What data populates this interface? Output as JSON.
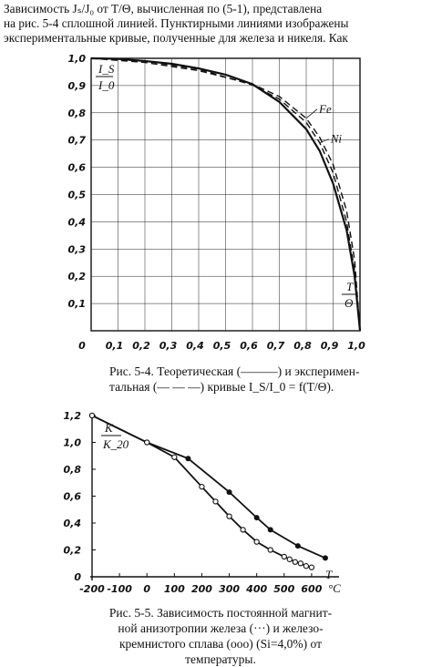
{
  "text": {
    "paragraph_lines": [
      "Зависимость Jₛ/J₀ от T/Θ, вычисленная по (5-1), представлена",
      "на рис. 5-4 сплошной линией. Пунктирными линиями изображены",
      "экспериментальные кривые, полученные для железа и никеля. Как"
    ],
    "figure1_caption_line1": "Рис. 5-4. Теоретическая (———) и эксперимен-",
    "figure1_caption_line2": "тальная (— — —) кривые I_S/I_0 = f(T/Θ).",
    "figure2_caption_line1": "Рис. 5-5. Зависимость постоянной магнит-",
    "figure2_caption_line2": "ной анизотропии железа (···) и железо-",
    "figure2_caption_line3": "кремнистого сплава (ooo) (Si=4,0%) от",
    "figure2_caption_line4": "температуры."
  },
  "chart_data": [
    {
      "type": "line",
      "xlabel_num": "T",
      "xlabel_den": "Θ",
      "ylabel_num": "I_S",
      "ylabel_den": "I_0",
      "xlim": [
        0,
        1.0
      ],
      "ylim": [
        0,
        1.0
      ],
      "x_ticks": [
        "0",
        "0,1",
        "0,2",
        "0,3",
        "0,4",
        "0,5",
        "0,6",
        "0,7",
        "0,8",
        "0,9",
        "1,0"
      ],
      "y_ticks": [
        "0,1",
        "0,2",
        "0,3",
        "0,4",
        "0,5",
        "0,6",
        "0,7",
        "0,8",
        "0,9",
        "1,0"
      ],
      "grid": true,
      "series": [
        {
          "style": "solid",
          "x": [
            0,
            0.1,
            0.2,
            0.3,
            0.4,
            0.5,
            0.6,
            0.7,
            0.8,
            0.85,
            0.9,
            0.95,
            0.98,
            1.0
          ],
          "y": [
            1.0,
            0.998,
            0.99,
            0.98,
            0.963,
            0.94,
            0.905,
            0.84,
            0.74,
            0.66,
            0.54,
            0.37,
            0.2,
            0.0
          ]
        },
        {
          "name": "Fe",
          "style": "dashed",
          "x": [
            0,
            0.2,
            0.4,
            0.6,
            0.7,
            0.8,
            0.85,
            0.9,
            0.95,
            0.98,
            1.0
          ],
          "y": [
            1.0,
            0.985,
            0.955,
            0.905,
            0.86,
            0.78,
            0.71,
            0.61,
            0.44,
            0.26,
            0.0
          ]
        },
        {
          "name": "Ni",
          "style": "dashed",
          "x": [
            0,
            0.2,
            0.4,
            0.6,
            0.7,
            0.8,
            0.85,
            0.9,
            0.95,
            0.98,
            1.0
          ],
          "y": [
            1.0,
            0.99,
            0.96,
            0.902,
            0.85,
            0.765,
            0.69,
            0.58,
            0.4,
            0.22,
            0.0
          ]
        }
      ]
    },
    {
      "type": "line",
      "xlabel": "T",
      "xunit": "°C",
      "ylabel_num": "K",
      "ylabel_den": "K_20",
      "xlim": [
        -200,
        700
      ],
      "ylim": [
        0,
        1.2
      ],
      "x_ticks": [
        "-200",
        "-100",
        "0",
        "100",
        "200",
        "300",
        "400",
        "500",
        "600"
      ],
      "y_ticks": [
        "0",
        "0,2",
        "0,4",
        "0,6",
        "0,8",
        "1,0",
        "1,2"
      ],
      "grid": false,
      "series": [
        {
          "marker": "dot",
          "x": [
            -200,
            0,
            150,
            300,
            400,
            450,
            550,
            650
          ],
          "y": [
            1.2,
            1.0,
            0.88,
            0.63,
            0.44,
            0.35,
            0.23,
            0.14
          ]
        },
        {
          "marker": "circle",
          "x": [
            -200,
            0,
            100,
            200,
            250,
            300,
            350,
            400,
            450,
            500,
            520,
            540,
            560,
            580,
            600
          ],
          "y": [
            1.2,
            1.0,
            0.89,
            0.67,
            0.56,
            0.45,
            0.35,
            0.26,
            0.2,
            0.15,
            0.13,
            0.11,
            0.1,
            0.08,
            0.07
          ]
        }
      ]
    }
  ]
}
